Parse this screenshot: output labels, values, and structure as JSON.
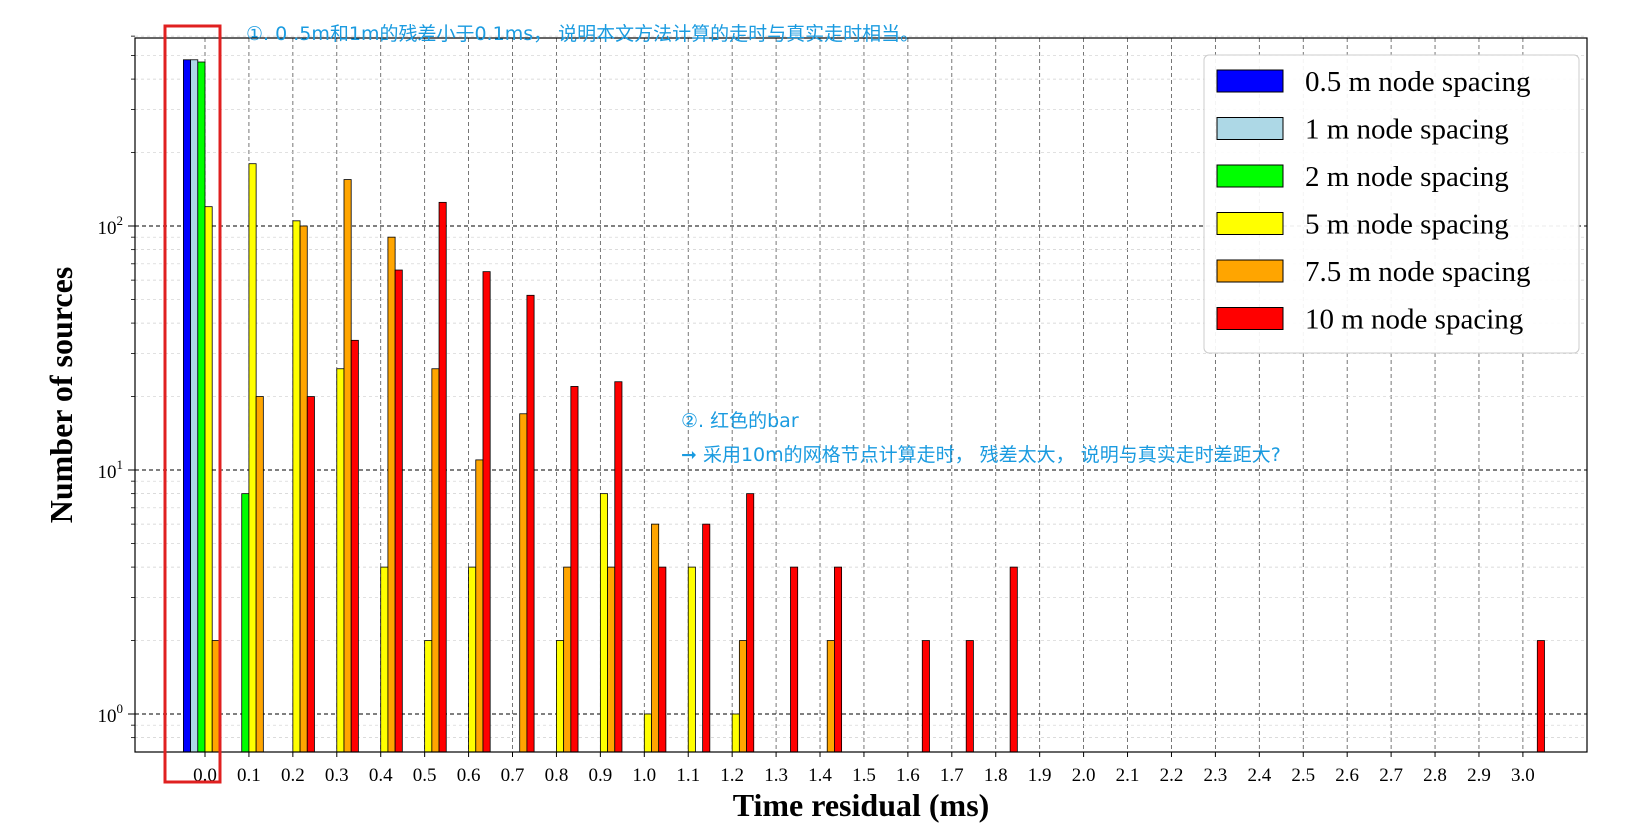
{
  "chart_data": {
    "type": "bar",
    "xlabel": "Time residual (ms)",
    "ylabel": "Number of sources",
    "yscale": "log",
    "ylim": [
      0.77,
      650
    ],
    "x_tick_labels": [
      "0.0",
      "0.1",
      "0.2",
      "0.3",
      "0.4",
      "0.5",
      "0.6",
      "0.7",
      "0.8",
      "0.9",
      "1.0",
      "1.1",
      "1.2",
      "1.3",
      "1.4",
      "1.5",
      "1.6",
      "1.7",
      "1.8",
      "1.9",
      "2.0",
      "2.1",
      "2.2",
      "2.3",
      "2.4",
      "2.5",
      "2.6",
      "2.7",
      "2.8",
      "2.9",
      "3.0"
    ],
    "y_tick_labels": [
      {
        "base": "10",
        "exp": "0",
        "value": 1
      },
      {
        "base": "10",
        "exp": "1",
        "value": 10
      },
      {
        "base": "10",
        "exp": "2",
        "value": 100
      }
    ],
    "grid": true,
    "legend_position": "top-right",
    "series": [
      {
        "name": "0.5 m node spacing",
        "color": "#0000ff",
        "points": [
          {
            "x": 0.0,
            "y": 480
          }
        ]
      },
      {
        "name": "1 m node spacing",
        "color": "#add8e6",
        "points": [
          {
            "x": 0.0,
            "y": 480
          }
        ]
      },
      {
        "name": "2 m node spacing",
        "color": "#00ff00",
        "points": [
          {
            "x": 0.0,
            "y": 470
          },
          {
            "x": 0.1,
            "y": 8
          }
        ]
      },
      {
        "name": "5 m node spacing",
        "color": "#ffff00",
        "points": [
          {
            "x": 0.0,
            "y": 120
          },
          {
            "x": 0.1,
            "y": 180
          },
          {
            "x": 0.2,
            "y": 105
          },
          {
            "x": 0.3,
            "y": 26
          },
          {
            "x": 0.4,
            "y": 4
          },
          {
            "x": 0.5,
            "y": 2
          },
          {
            "x": 0.6,
            "y": 4
          },
          {
            "x": 0.8,
            "y": 2
          },
          {
            "x": 0.9,
            "y": 8
          },
          {
            "x": 1.0,
            "y": 1
          },
          {
            "x": 1.1,
            "y": 4
          },
          {
            "x": 1.2,
            "y": 1
          }
        ]
      },
      {
        "name": "7.5 m node spacing",
        "color": "#ffa500",
        "points": [
          {
            "x": 0.0,
            "y": 2
          },
          {
            "x": 0.1,
            "y": 20
          },
          {
            "x": 0.2,
            "y": 100
          },
          {
            "x": 0.3,
            "y": 155
          },
          {
            "x": 0.4,
            "y": 90
          },
          {
            "x": 0.5,
            "y": 26
          },
          {
            "x": 0.6,
            "y": 11
          },
          {
            "x": 0.7,
            "y": 17
          },
          {
            "x": 0.8,
            "y": 4
          },
          {
            "x": 0.9,
            "y": 4
          },
          {
            "x": 1.0,
            "y": 6
          },
          {
            "x": 1.2,
            "y": 2
          },
          {
            "x": 1.4,
            "y": 2
          }
        ]
      },
      {
        "name": "10 m node spacing",
        "color": "#ff0000",
        "points": [
          {
            "x": 0.2,
            "y": 20
          },
          {
            "x": 0.3,
            "y": 34
          },
          {
            "x": 0.4,
            "y": 66
          },
          {
            "x": 0.5,
            "y": 125
          },
          {
            "x": 0.6,
            "y": 65
          },
          {
            "x": 0.7,
            "y": 52
          },
          {
            "x": 0.8,
            "y": 22
          },
          {
            "x": 0.9,
            "y": 23
          },
          {
            "x": 1.0,
            "y": 4
          },
          {
            "x": 1.1,
            "y": 6
          },
          {
            "x": 1.2,
            "y": 8
          },
          {
            "x": 1.3,
            "y": 4
          },
          {
            "x": 1.4,
            "y": 4
          },
          {
            "x": 1.6,
            "y": 2
          },
          {
            "x": 1.7,
            "y": 2
          },
          {
            "x": 1.8,
            "y": 4
          },
          {
            "x": 3.0,
            "y": 2
          }
        ]
      }
    ]
  },
  "annotations": {
    "note1": "①. 0 .5m和1m的残差小于0.1ms， 说明本文方法计算的走时与真实走时相当。",
    "note2_line1": "②. 红色的bar",
    "note2_line2": "➞ 采用10m的网格节点计算走时， 残差太大， 说明与真实走时差距大?",
    "highlight_color": "#e02020",
    "note_color": "#1a9be0"
  }
}
